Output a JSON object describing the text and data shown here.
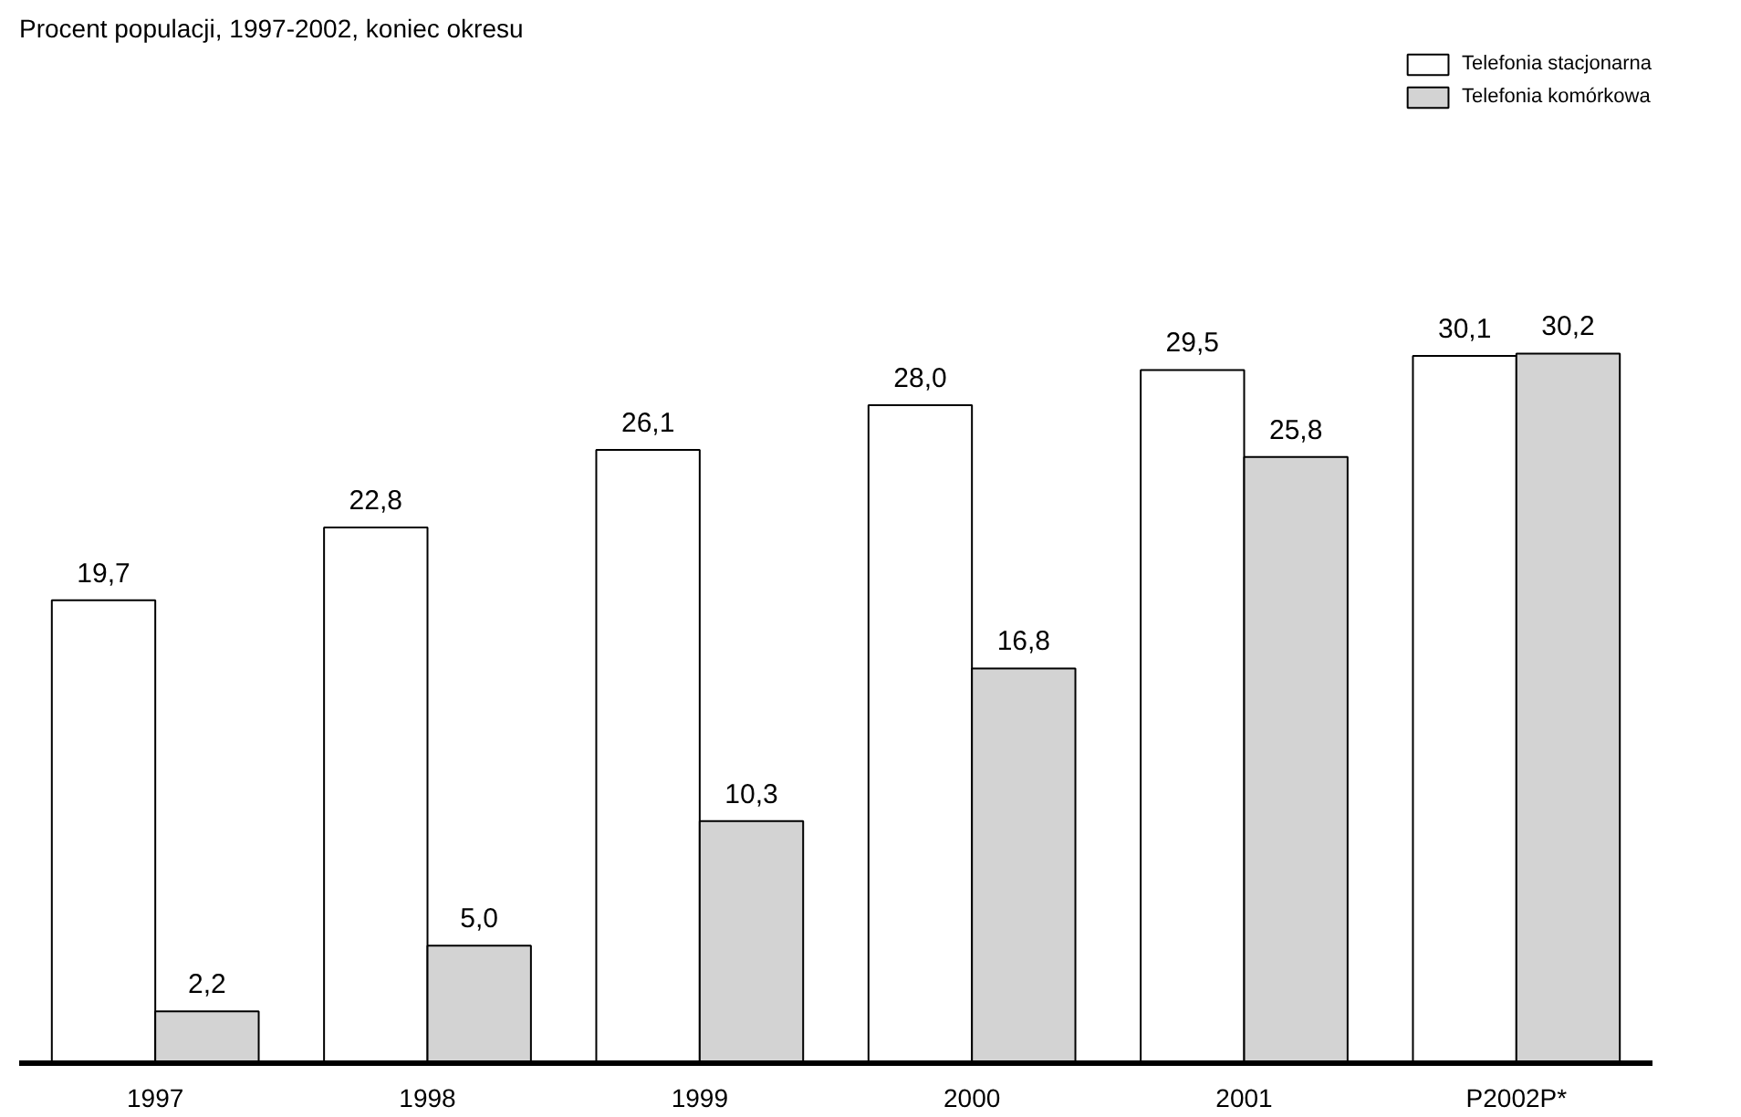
{
  "chart_data": {
    "type": "bar",
    "title": "Procent populacji, 1997-2002, koniec okresu",
    "categories": [
      "1997",
      "1998",
      "1999",
      "2000",
      "2001",
      "P2002P*"
    ],
    "series": [
      {
        "name": "Telefonia stacjonarna",
        "color": "#ffffff",
        "values": [
          19.7,
          22.8,
          26.1,
          28.0,
          29.5,
          30.1
        ],
        "value_labels": [
          "19,7",
          "22,8",
          "26,1",
          "28,0",
          "29,5",
          "30,1"
        ]
      },
      {
        "name": "Telefonia komórkowa",
        "color": "#d3d3d3",
        "values": [
          2.2,
          5.0,
          10.3,
          16.8,
          25.8,
          30.2
        ],
        "value_labels": [
          "2,2",
          "5,0",
          "10,3",
          "16,8",
          "25,8",
          "30,2"
        ]
      }
    ],
    "grid": false,
    "legend": "top right",
    "tick_labels": "x"
  }
}
